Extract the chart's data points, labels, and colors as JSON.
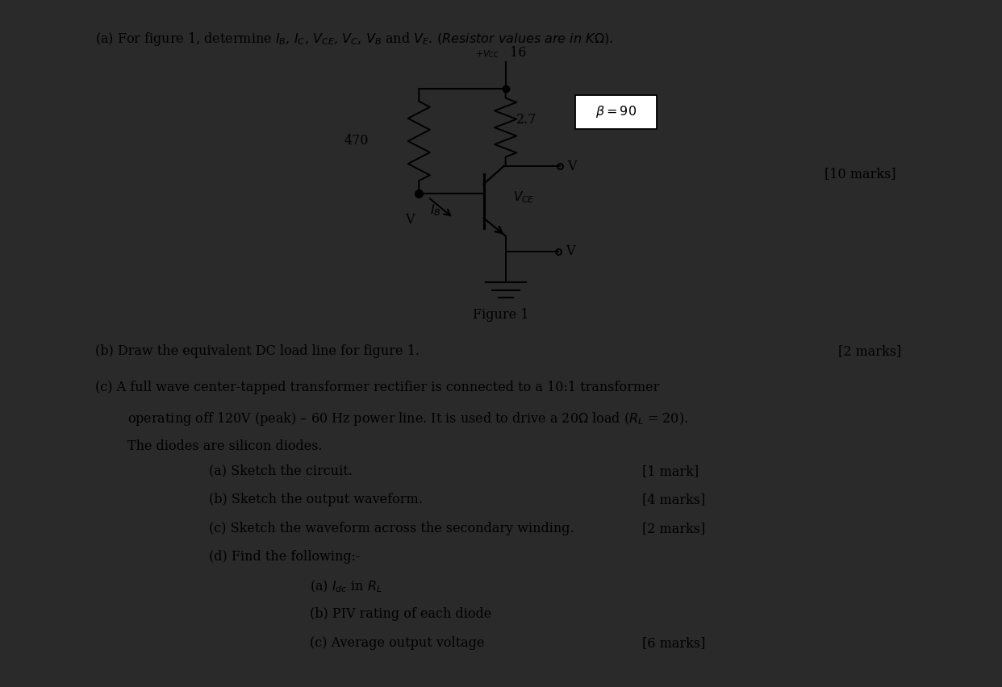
{
  "bg_color": "#2a2a2a",
  "paper_color": "#ffffff",
  "text_color": "#000000",
  "figure_label": "Figure 1",
  "beta_text": "β = 90",
  "vcc_value": "16",
  "r1_label": "470",
  "r2_label": "2.7",
  "marks_10": "[10 marks]",
  "marks_b": "[2 marks]",
  "marks_1": "[1 mark]",
  "marks_4": "[4 marks]",
  "marks_2": "[2 marks]",
  "marks_6": "[6 marks]"
}
